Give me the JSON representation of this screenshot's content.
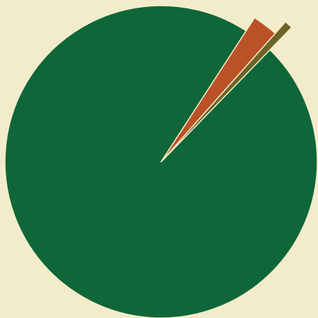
{
  "chart_data": {
    "type": "pie",
    "categories": [
      null,
      null,
      null
    ],
    "values": [
      2.4,
      0.7,
      96.9
    ],
    "colors": [
      "#bb5127",
      "#6e6326",
      "#0e6639"
    ],
    "explode": [
      0.1,
      0.2,
      0
    ]
  }
}
